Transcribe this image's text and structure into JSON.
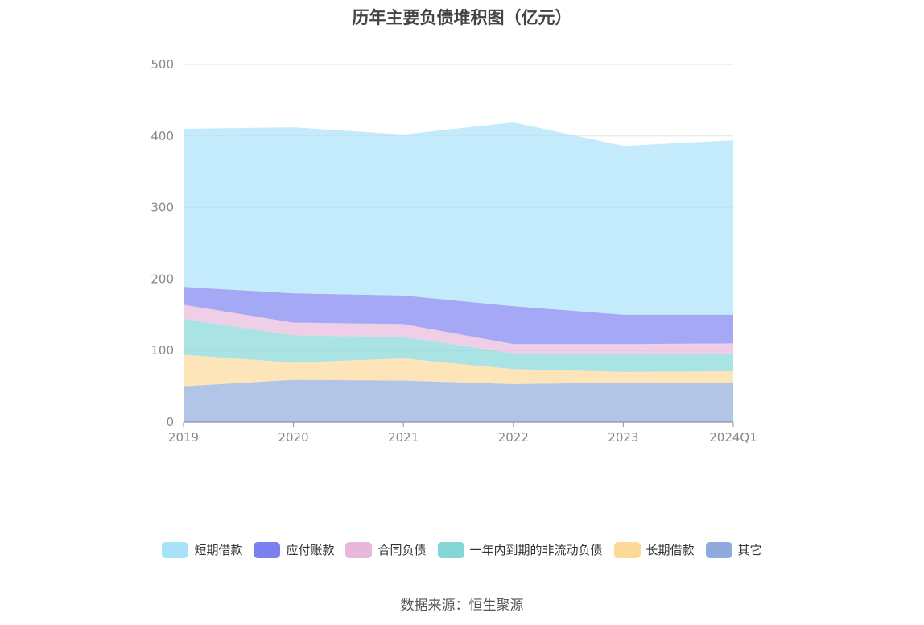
{
  "chart_data": {
    "type": "area",
    "stacked": true,
    "title": "历年主要负债堆积图（亿元）",
    "categories": [
      "2019",
      "2020",
      "2021",
      "2022",
      "2023",
      "2024Q1"
    ],
    "ylim": [
      0,
      500
    ],
    "yticks": [
      0,
      100,
      200,
      300,
      400,
      500
    ],
    "grid": true,
    "legend_position": "bottom",
    "series": [
      {
        "name": "其它",
        "color": "#8faadc",
        "values": [
          50,
          59,
          58,
          53,
          55,
          54
        ]
      },
      {
        "name": "长期借款",
        "color": "#fdd998",
        "values": [
          44,
          24,
          31,
          21,
          15,
          17
        ]
      },
      {
        "name": "一年内到期的非流动负债",
        "color": "#82d6d6",
        "values": [
          50,
          38,
          30,
          22,
          25,
          25
        ]
      },
      {
        "name": "合同负债",
        "color": "#e8b7dc",
        "values": [
          20,
          18,
          18,
          13,
          14,
          14
        ]
      },
      {
        "name": "应付账款",
        "color": "#7b7ff0",
        "values": [
          25,
          41,
          40,
          53,
          41,
          40
        ]
      },
      {
        "name": "短期借款",
        "color": "#a8e1fa",
        "values": [
          221,
          232,
          225,
          257,
          236,
          244
        ]
      }
    ],
    "legend_order": [
      "短期借款",
      "应付账款",
      "合同负债",
      "一年内到期的非流动负债",
      "长期借款",
      "其它"
    ]
  },
  "source_text": "数据来源：恒生聚源"
}
